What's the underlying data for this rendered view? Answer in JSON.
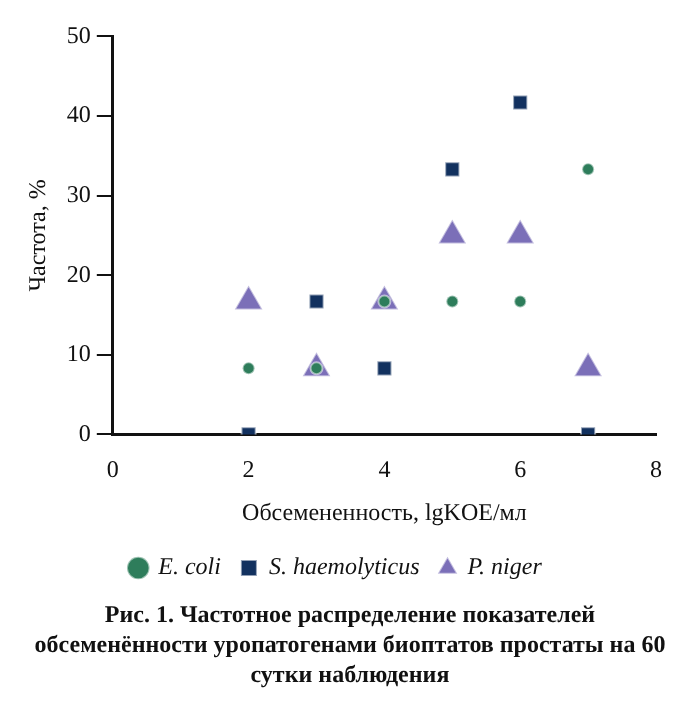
{
  "chart_data": {
    "type": "scatter",
    "xlabel": "Обсемененность, lgKOE/мл",
    "ylabel": "Частота, %",
    "annotations": [
      "Рис. 1. Частотное распределение показателей обсеменённости уропатогенами биоптатов простаты на 60 сутки наблюдения"
    ],
    "x": [
      2,
      3,
      4,
      5,
      6,
      7
    ],
    "series": [
      {
        "name": "E. coli",
        "color": "#2e7d5b",
        "marker": "circle",
        "values": [
          8.3,
          8.3,
          16.7,
          16.7,
          16.7,
          33.3
        ]
      },
      {
        "name": "S. haemolyticus",
        "color": "#12315f",
        "marker": "square",
        "values": [
          0,
          16.7,
          8.3,
          33.3,
          41.7,
          0
        ]
      },
      {
        "name": "P. niger",
        "color": "#7b6fb8",
        "marker": "triangle",
        "values": [
          16.7,
          8.3,
          16.7,
          25,
          25,
          8.3
        ]
      }
    ],
    "xlim": [
      0,
      8
    ],
    "xticks": [
      0,
      2,
      4,
      6,
      8
    ],
    "ylim": [
      0,
      50
    ],
    "yticks": [
      0,
      10,
      20,
      30,
      40,
      50
    ],
    "grid": false,
    "legend": "bottom"
  }
}
